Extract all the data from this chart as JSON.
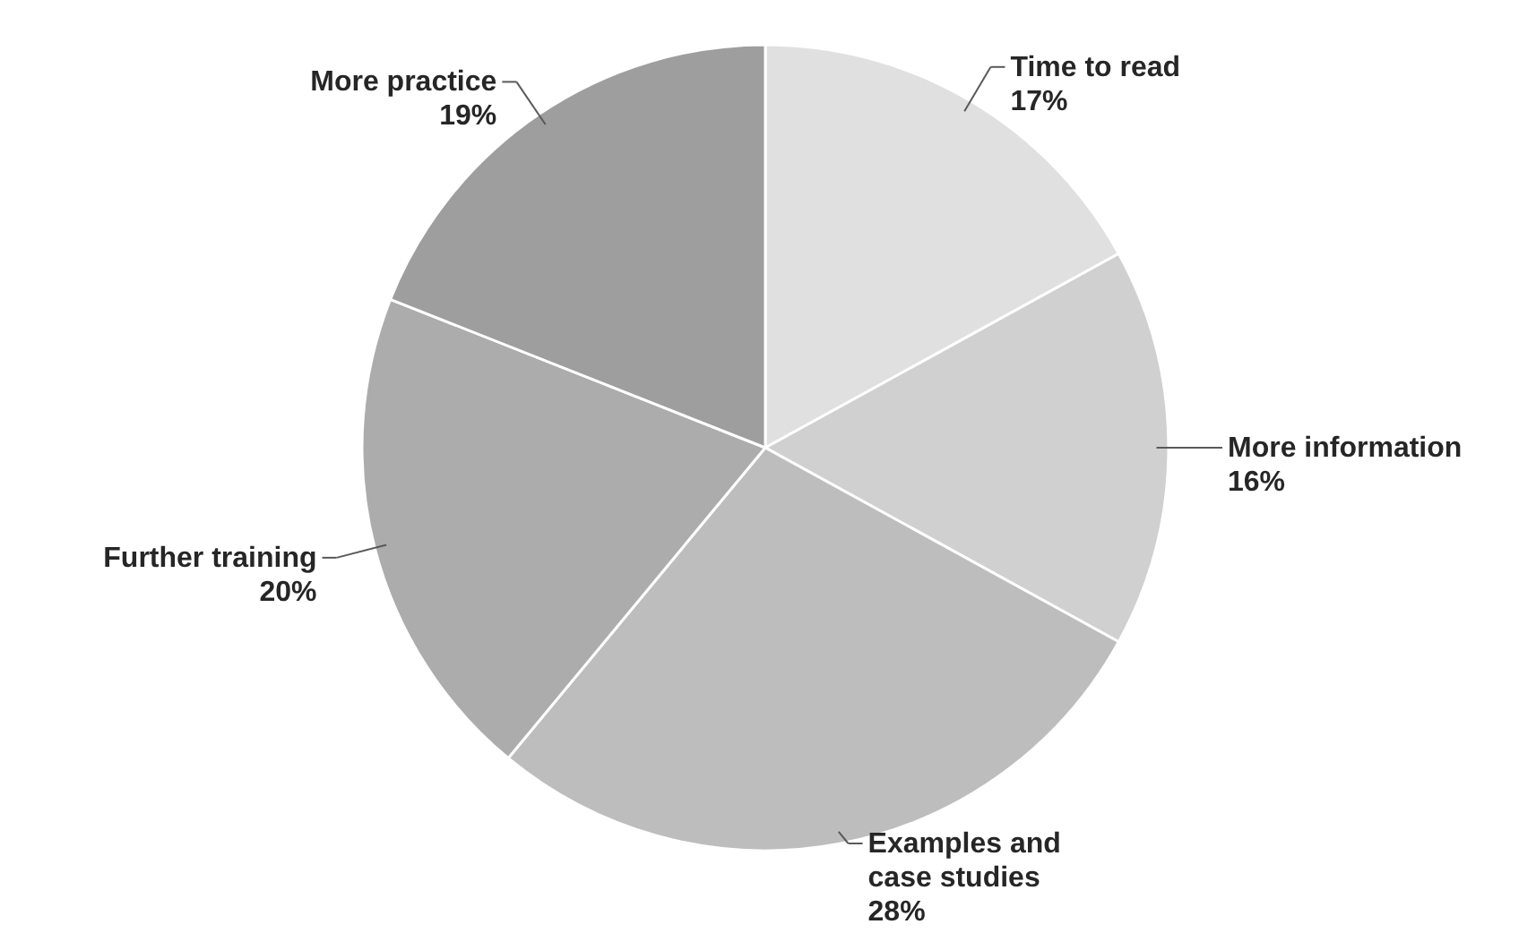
{
  "chart_data": {
    "type": "pie",
    "categories": [
      "Time to read",
      "More information",
      "Examples and case studies",
      "Further training",
      "More practice"
    ],
    "values": [
      17,
      16,
      28,
      20,
      19
    ],
    "value_labels": [
      "17%",
      "16%",
      "28%",
      "20%",
      "19%"
    ],
    "colors": [
      "#e0e0e0",
      "#d0d0d0",
      "#bdbdbd",
      "#acacac",
      "#9e9e9e"
    ]
  }
}
